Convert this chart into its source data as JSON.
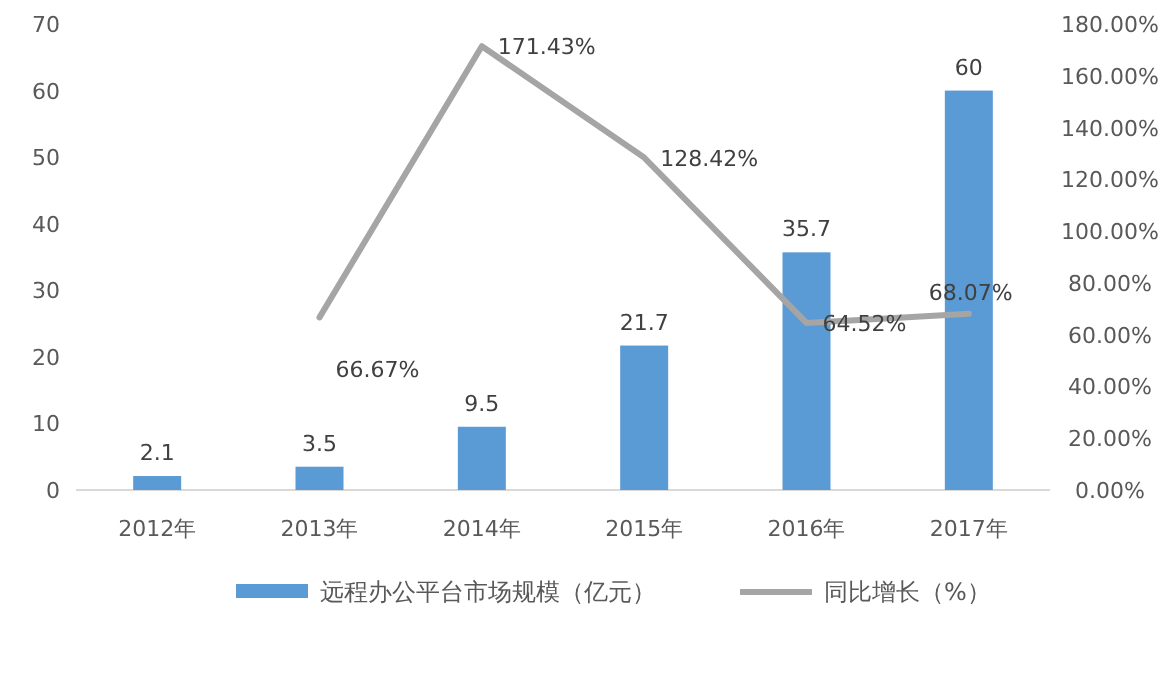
{
  "chart_data": {
    "type": "bar",
    "categories": [
      "2012年",
      "2013年",
      "2014年",
      "2015年",
      "2016年",
      "2017年"
    ],
    "series": [
      {
        "name": "远程办公平台市场规模（亿元）",
        "color": "#5b9bd5",
        "values": [
          2.1,
          3.5,
          9.5,
          21.7,
          35.7,
          60
        ],
        "value_labels": [
          "2.1",
          "3.5",
          "9.5",
          "21.7",
          "35.7",
          "60"
        ]
      },
      {
        "name": "同比增长（%）",
        "type": "line",
        "axis": "y2",
        "color": "#a5a5a5",
        "values": [
          null,
          66.67,
          171.43,
          128.42,
          64.52,
          68.07
        ],
        "value_labels": [
          null,
          "66.67%",
          "171.43%",
          "128.42%",
          "64.52%",
          "68.07%"
        ]
      }
    ],
    "ylim": [
      0,
      70
    ],
    "yticks": [
      0,
      10,
      20,
      30,
      40,
      50,
      60,
      70
    ],
    "y2lim": [
      0,
      180
    ],
    "y2ticks": [
      {
        "value": 0,
        "label": "0.00%"
      },
      {
        "value": 20,
        "label": "20.00%"
      },
      {
        "value": 40,
        "label": "40.00%"
      },
      {
        "value": 60,
        "label": "60.00%"
      },
      {
        "value": 80,
        "label": "80.00%"
      },
      {
        "value": 100,
        "label": "100.00%"
      },
      {
        "value": 120,
        "label": "120.00%"
      },
      {
        "value": 140,
        "label": "140.00%"
      },
      {
        "value": 160,
        "label": "160.00%"
      },
      {
        "value": 180,
        "label": "180.00%"
      }
    ],
    "legend": "bottom",
    "marker": "none",
    "line_style": "solid"
  }
}
